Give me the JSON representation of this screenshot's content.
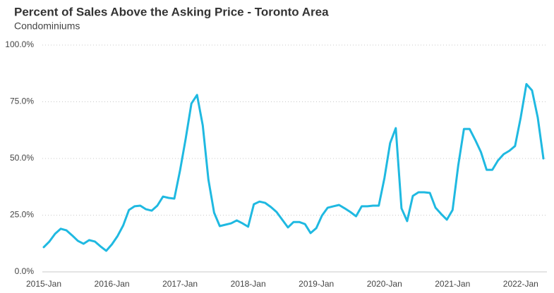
{
  "chart_data": {
    "type": "line",
    "title": "Percent of Sales Above the Asking Price - Toronto Area",
    "subtitle": "Condominiums",
    "categories": [
      "2015-Jan",
      null,
      null,
      null,
      null,
      null,
      null,
      null,
      null,
      null,
      null,
      null,
      "2016-Jan",
      null,
      null,
      null,
      null,
      null,
      null,
      null,
      null,
      null,
      null,
      null,
      "2017-Jan",
      null,
      null,
      null,
      null,
      null,
      null,
      null,
      null,
      null,
      null,
      null,
      "2018-Jan",
      null,
      null,
      null,
      null,
      null,
      null,
      null,
      null,
      null,
      null,
      null,
      "2019-Jan",
      null,
      null,
      null,
      null,
      null,
      null,
      null,
      null,
      null,
      null,
      null,
      "2020-Jan",
      null,
      null,
      null,
      null,
      null,
      null,
      null,
      null,
      null,
      null,
      null,
      "2021-Jan",
      null,
      null,
      null,
      null,
      null,
      null,
      null,
      null,
      null,
      null,
      null,
      "2022-Jan",
      null,
      null,
      null,
      null
    ],
    "series": [
      {
        "name": "Condominiums",
        "color": "#1fb9e1",
        "values": [
          10.9,
          13.4,
          16.8,
          19.0,
          18.3,
          16.1,
          13.7,
          12.4,
          14.0,
          13.4,
          11.2,
          9.3,
          12.1,
          15.8,
          20.5,
          27.3,
          28.9,
          29.2,
          27.6,
          27.0,
          29.2,
          33.2,
          32.6,
          32.3,
          44.7,
          58.7,
          74.2,
          78.0,
          64.6,
          40.7,
          26.1,
          20.2,
          20.8,
          21.4,
          22.7,
          21.4,
          19.9,
          29.8,
          31.0,
          30.4,
          28.6,
          26.4,
          23.0,
          19.6,
          22.0,
          22.0,
          21.1,
          17.1,
          19.3,
          24.8,
          28.3,
          28.9,
          29.5,
          28.0,
          26.4,
          24.5,
          28.9,
          28.9,
          29.2,
          29.2,
          41.3,
          56.8,
          63.4,
          28.0,
          22.4,
          33.5,
          35.1,
          35.1,
          34.8,
          28.3,
          25.5,
          23.0,
          27.3,
          46.9,
          63.0,
          63.0,
          58.1,
          52.8,
          45.0,
          45.0,
          49.1,
          51.9,
          53.4,
          55.5,
          68.0,
          82.8,
          80.0,
          68.0,
          50.0
        ]
      }
    ],
    "ylim": [
      0,
      100
    ],
    "yticks": [
      {
        "value": 0,
        "label": "0.0%"
      },
      {
        "value": 25,
        "label": "25.0%"
      },
      {
        "value": 50,
        "label": "50.0%"
      },
      {
        "value": 75,
        "label": "75.0%"
      },
      {
        "value": 100,
        "label": "100.0%"
      }
    ],
    "grid": true
  }
}
